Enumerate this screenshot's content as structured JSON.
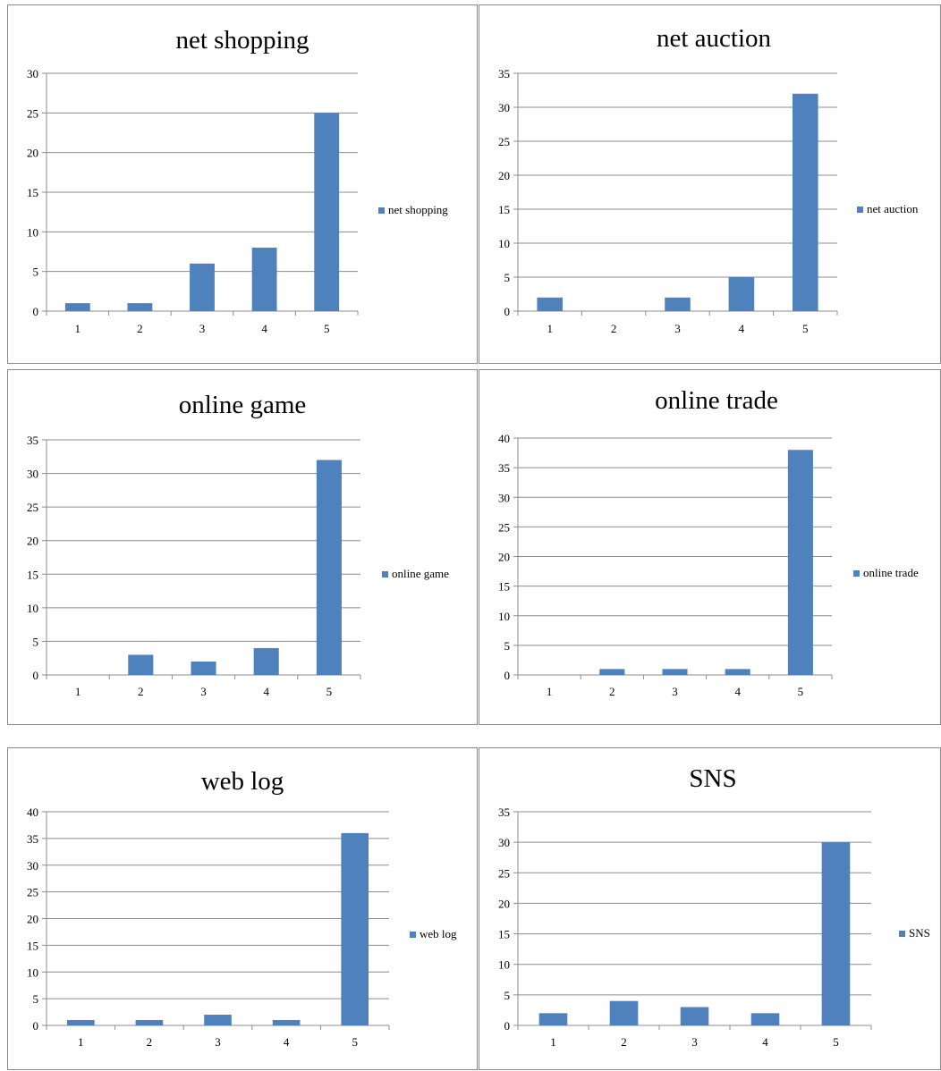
{
  "colors": {
    "bar": "#4f81bd",
    "grid": "#8c8c8c",
    "border": "#8a8a8a"
  },
  "chart_data": [
    {
      "type": "bar",
      "title": "net shopping",
      "categories": [
        "1",
        "2",
        "3",
        "4",
        "5"
      ],
      "series": [
        {
          "name": "net shopping",
          "values": [
            1,
            1,
            6,
            8,
            25
          ]
        }
      ],
      "ylim": [
        0,
        30
      ],
      "yticks": [
        0,
        5,
        10,
        15,
        20,
        25,
        30
      ],
      "grid": true,
      "legend": "right"
    },
    {
      "type": "bar",
      "title": "net auction",
      "categories": [
        "1",
        "2",
        "3",
        "4",
        "5"
      ],
      "series": [
        {
          "name": "net auction",
          "values": [
            2,
            0,
            2,
            5,
            32
          ]
        }
      ],
      "ylim": [
        0,
        35
      ],
      "yticks": [
        0,
        5,
        10,
        15,
        20,
        25,
        30,
        35
      ],
      "grid": true,
      "legend": "right"
    },
    {
      "type": "bar",
      "title": "online game",
      "categories": [
        "1",
        "2",
        "3",
        "4",
        "5"
      ],
      "series": [
        {
          "name": "online game",
          "values": [
            0,
            3,
            2,
            4,
            32
          ]
        }
      ],
      "ylim": [
        0,
        35
      ],
      "yticks": [
        0,
        5,
        10,
        15,
        20,
        25,
        30,
        35
      ],
      "grid": true,
      "legend": "right"
    },
    {
      "type": "bar",
      "title": "online trade",
      "categories": [
        "1",
        "2",
        "3",
        "4",
        "5"
      ],
      "series": [
        {
          "name": "online trade",
          "values": [
            0,
            1,
            1,
            1,
            38
          ]
        }
      ],
      "ylim": [
        0,
        40
      ],
      "yticks": [
        0,
        5,
        10,
        15,
        20,
        25,
        30,
        35,
        40
      ],
      "grid": true,
      "legend": "right"
    },
    {
      "type": "bar",
      "title": "web log",
      "categories": [
        "1",
        "2",
        "3",
        "4",
        "5"
      ],
      "series": [
        {
          "name": "web log",
          "values": [
            1,
            1,
            2,
            1,
            36
          ]
        }
      ],
      "ylim": [
        0,
        40
      ],
      "yticks": [
        0,
        5,
        10,
        15,
        20,
        25,
        30,
        35,
        40
      ],
      "grid": true,
      "legend": "right"
    },
    {
      "type": "bar",
      "title": "SNS",
      "categories": [
        "1",
        "2",
        "3",
        "4",
        "5"
      ],
      "series": [
        {
          "name": "SNS",
          "values": [
            2,
            4,
            3,
            2,
            30
          ]
        }
      ],
      "ylim": [
        0,
        35
      ],
      "yticks": [
        0,
        5,
        10,
        15,
        20,
        25,
        30,
        35
      ],
      "grid": true,
      "legend": "right"
    }
  ]
}
